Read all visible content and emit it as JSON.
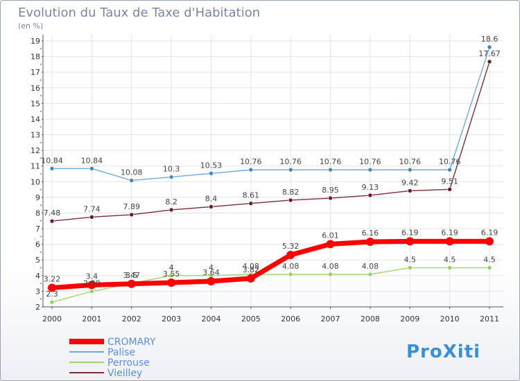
{
  "chart_data": {
    "type": "line",
    "title": "Evolution du Taux de Taxe d'Habitation",
    "subtitle": "(en %)",
    "x": [
      "2000",
      "2001",
      "2002",
      "2003",
      "2004",
      "2005",
      "2006",
      "2007",
      "2008",
      "2009",
      "2010",
      "2011"
    ],
    "ylim": [
      2,
      19
    ],
    "yticks": [
      2,
      3,
      4,
      5,
      6,
      7,
      8,
      9,
      10,
      11,
      12,
      13,
      14,
      15,
      16,
      17,
      18,
      19
    ],
    "grid": true,
    "legend_position": "bottom-left",
    "series": [
      {
        "name": "Palise",
        "color": "#6fa8d8",
        "marker_color": "#3d86c6",
        "values": [
          10.84,
          10.84,
          10.08,
          10.3,
          10.53,
          10.76,
          10.76,
          10.76,
          10.76,
          10.76,
          10.76,
          18.6
        ],
        "labels": [
          "10.84",
          "10.84",
          "10.08",
          "10.3",
          "10.53",
          "10.76",
          "10.76",
          "10.76",
          "10.76",
          "10.76",
          "10.76",
          "18.6"
        ]
      },
      {
        "name": "Vieilley",
        "color": "#7a2e34",
        "marker_color": "#6a1d24",
        "values": [
          7.48,
          7.74,
          7.89,
          8.2,
          8.4,
          8.61,
          8.82,
          8.95,
          9.13,
          9.42,
          9.51,
          17.67
        ],
        "labels": [
          "7.48",
          "7.74",
          "7.89",
          "8.2",
          "8.4",
          "8.61",
          "8.82",
          "8.95",
          "9.13",
          "9.42",
          "9.51",
          "17.67"
        ]
      },
      {
        "name": "Perrouse",
        "color": "#9ed46f",
        "marker_color": "#8fd25a",
        "values": [
          2.3,
          2.99,
          3.5,
          4,
          4,
          4.08,
          4.08,
          4.08,
          4.08,
          4.5,
          4.5,
          4.5
        ],
        "labels": [
          "2.3",
          "2.99",
          "3.5",
          "4",
          "4",
          "4.08",
          "4.08",
          "4.08",
          "4.08",
          "4.5",
          "4.5",
          "4.5"
        ]
      },
      {
        "name": "CROMARY",
        "color": "#ff0000",
        "marker_color": "#ff0000",
        "values": [
          3.22,
          3.4,
          3.47,
          3.55,
          3.64,
          3.82,
          5.32,
          6.01,
          6.16,
          6.19,
          6.19,
          6.19
        ],
        "labels": [
          "3.22",
          "3.4",
          "3.47",
          "3.55",
          "3.64",
          "3.82",
          "5.32",
          "6.01",
          "6.16",
          "6.19",
          "6.19",
          "6.19"
        ]
      }
    ],
    "legend": [
      {
        "name": "CROMARY",
        "color": "#ff0000"
      },
      {
        "name": "Palise",
        "color": "#6fa8d8"
      },
      {
        "name": "Perrouse",
        "color": "#9ed46f"
      },
      {
        "name": "Vieilley",
        "color": "#7a2e34"
      }
    ]
  },
  "logo": {
    "text": "ProXiti"
  }
}
